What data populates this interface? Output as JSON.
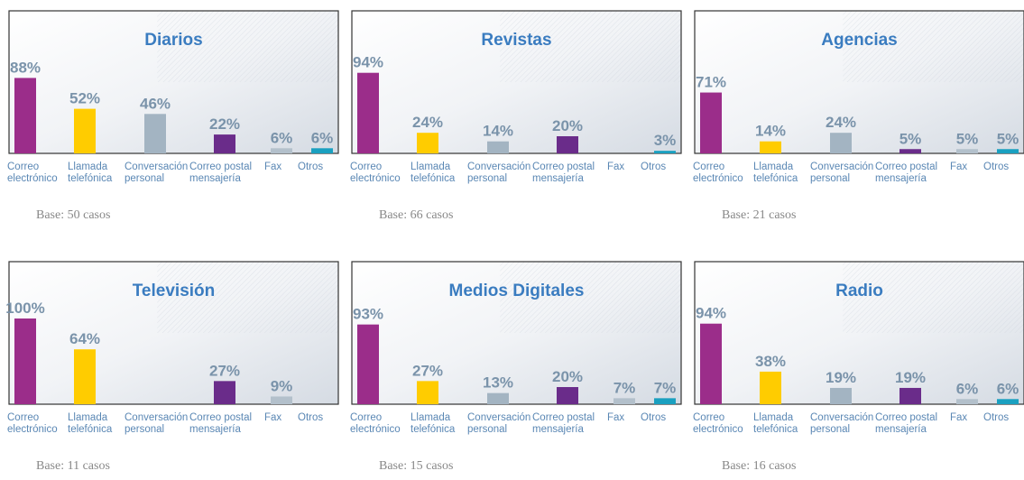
{
  "chart_data": [
    {
      "type": "bar",
      "title": "Diarios",
      "categories": [
        "Correo\nelectrónico",
        "Llamada\ntelefónica",
        "Conversación\npersonal",
        "Correo postal\nmensajería",
        "Fax",
        "Otros"
      ],
      "values": [
        88,
        52,
        46,
        22,
        6,
        6
      ],
      "value_labels": [
        "88%",
        "52%",
        "46%",
        "22%",
        "6%",
        "6%"
      ],
      "colors": [
        "#9b2d8a",
        "#ffcc00",
        "#a3b4c2",
        "#6a2c8a",
        "#b3c0cb",
        "#1aa0c0"
      ],
      "ylim": [
        0,
        100
      ],
      "note": "Base: 50 casos"
    },
    {
      "type": "bar",
      "title": "Revistas",
      "categories": [
        "Correo\nelectrónico",
        "Llamada\ntelefónica",
        "Conversación\npersonal",
        "Correo postal\nmensajería",
        "Fax",
        "Otros"
      ],
      "values": [
        94,
        24,
        14,
        20,
        null,
        3
      ],
      "value_labels": [
        "94%",
        "24%",
        "14%",
        "20%",
        null,
        "3%"
      ],
      "colors": [
        "#9b2d8a",
        "#ffcc00",
        "#a3b4c2",
        "#6a2c8a",
        "#b3c0cb",
        "#1aa0c0"
      ],
      "ylim": [
        0,
        100
      ],
      "note": "Base: 66 casos"
    },
    {
      "type": "bar",
      "title": "Agencias",
      "categories": [
        "Correo\nelectrónico",
        "Llamada\ntelefónica",
        "Conversación\npersonal",
        "Correo postal\nmensajería",
        "Fax",
        "Otros"
      ],
      "values": [
        71,
        14,
        24,
        5,
        5,
        5
      ],
      "value_labels": [
        "71%",
        "14%",
        "24%",
        "5%",
        "5%",
        "5%"
      ],
      "colors": [
        "#9b2d8a",
        "#ffcc00",
        "#a3b4c2",
        "#6a2c8a",
        "#b3c0cb",
        "#1aa0c0"
      ],
      "ylim": [
        0,
        100
      ],
      "note": "Base: 21 casos"
    },
    {
      "type": "bar",
      "title": "Televisión",
      "categories": [
        "Correo\nelectrónico",
        "Llamada\ntelefónica",
        "Conversación\npersonal",
        "Correo postal\nmensajería",
        "Fax",
        "Otros"
      ],
      "values": [
        100,
        64,
        null,
        27,
        9,
        null
      ],
      "value_labels": [
        "100%",
        "64%",
        null,
        "27%",
        "9%",
        null
      ],
      "colors": [
        "#9b2d8a",
        "#ffcc00",
        "#a3b4c2",
        "#6a2c8a",
        "#b3c0cb",
        "#1aa0c0"
      ],
      "ylim": [
        0,
        100
      ],
      "note": "Base: 11 casos"
    },
    {
      "type": "bar",
      "title": "Medios Digitales",
      "categories": [
        "Correo\nelectrónico",
        "Llamada\ntelefónica",
        "Conversación\npersonal",
        "Correo postal\nmensajería",
        "Fax",
        "Otros"
      ],
      "values": [
        93,
        27,
        13,
        20,
        7,
        7
      ],
      "value_labels": [
        "93%",
        "27%",
        "13%",
        "20%",
        "7%",
        "7%"
      ],
      "colors": [
        "#9b2d8a",
        "#ffcc00",
        "#a3b4c2",
        "#6a2c8a",
        "#b3c0cb",
        "#1aa0c0"
      ],
      "ylim": [
        0,
        100
      ],
      "note": "Base: 15 casos"
    },
    {
      "type": "bar",
      "title": "Radio",
      "categories": [
        "Correo\nelectrónico",
        "Llamada\ntelefónica",
        "Conversación\npersonal",
        "Correo postal\nmensajería",
        "Fax",
        "Otros"
      ],
      "values": [
        94,
        38,
        19,
        19,
        6,
        6
      ],
      "value_labels": [
        "94%",
        "38%",
        "19%",
        "19%",
        "6%",
        "6%"
      ],
      "colors": [
        "#9b2d8a",
        "#ffcc00",
        "#a3b4c2",
        "#6a2c8a",
        "#b3c0cb",
        "#1aa0c0"
      ],
      "ylim": [
        0,
        100
      ],
      "note": "Base: 16 casos"
    }
  ]
}
